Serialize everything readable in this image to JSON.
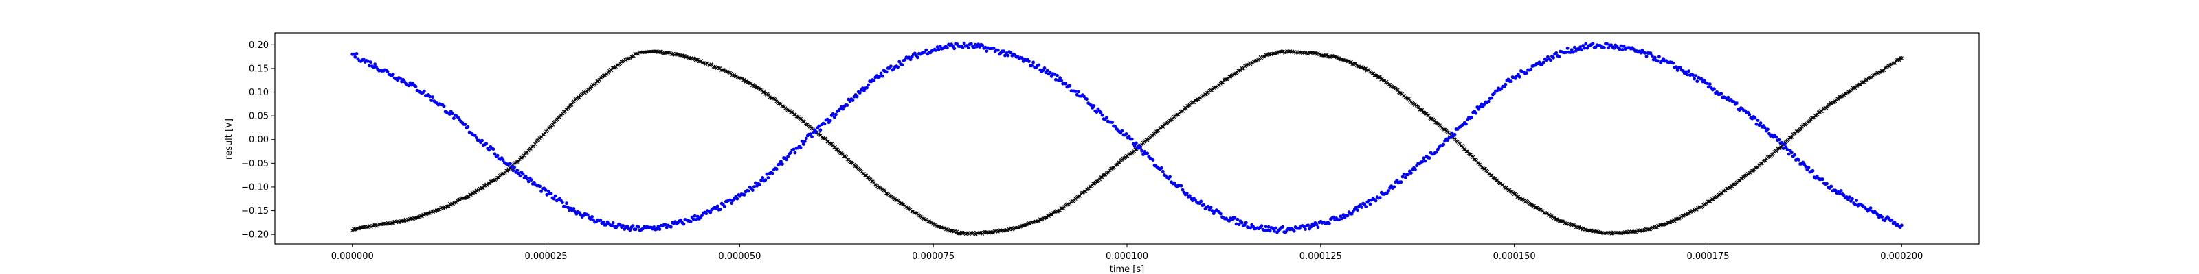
{
  "chart_data": {
    "type": "scatter",
    "title": "",
    "xlabel": "time [s]",
    "ylabel": "result [V]",
    "xlim": [
      -1e-05,
      0.00021
    ],
    "ylim": [
      -0.22,
      0.225
    ],
    "grid": false,
    "x_ticks": [
      "0.000000",
      "0.000025",
      "0.000050",
      "0.000075",
      "0.000100",
      "0.000125",
      "0.000150",
      "0.000175",
      "0.000200"
    ],
    "y_ticks": [
      "0.20",
      "0.15",
      "0.10",
      "0.05",
      "0.00",
      "−0.05",
      "−0.10",
      "−0.15",
      "−0.20"
    ],
    "series": [
      {
        "color": "#000000",
        "marker": "x",
        "x": [
          0.0,
          1e-05,
          2e-05,
          3e-05,
          3.83e-05,
          5e-05,
          6e-05,
          7e-05,
          7.93e-05,
          9e-05,
          0.0001,
          0.00011,
          0.0001205,
          0.00013,
          0.00014,
          0.00015,
          0.0001625,
          0.00017,
          0.00018,
          0.00019,
          0.0002
        ],
        "y": [
          -0.19,
          -0.155,
          -0.065,
          0.1,
          0.185,
          0.13,
          0.015,
          -0.125,
          -0.198,
          -0.16,
          -0.035,
          0.095,
          0.185,
          0.155,
          0.035,
          -0.115,
          -0.197,
          -0.175,
          -0.075,
          0.065,
          0.172
        ]
      },
      {
        "color": "#0000ff",
        "marker": "dot",
        "x": [
          0.0,
          1e-05,
          2e-05,
          3e-05,
          3.7e-05,
          5e-05,
          6e-05,
          7e-05,
          7.85e-05,
          9e-05,
          0.0001,
          0.00011,
          0.00012,
          0.00013,
          0.00014,
          0.00015,
          0.000161,
          0.00017,
          0.00018,
          0.00019,
          0.0002
        ],
        "y": [
          0.18,
          0.09,
          -0.05,
          -0.16,
          -0.188,
          -0.12,
          0.02,
          0.155,
          0.198,
          0.14,
          0.005,
          -0.14,
          -0.19,
          -0.145,
          -0.02,
          0.13,
          0.198,
          0.16,
          0.055,
          -0.09,
          -0.185
        ]
      }
    ]
  }
}
